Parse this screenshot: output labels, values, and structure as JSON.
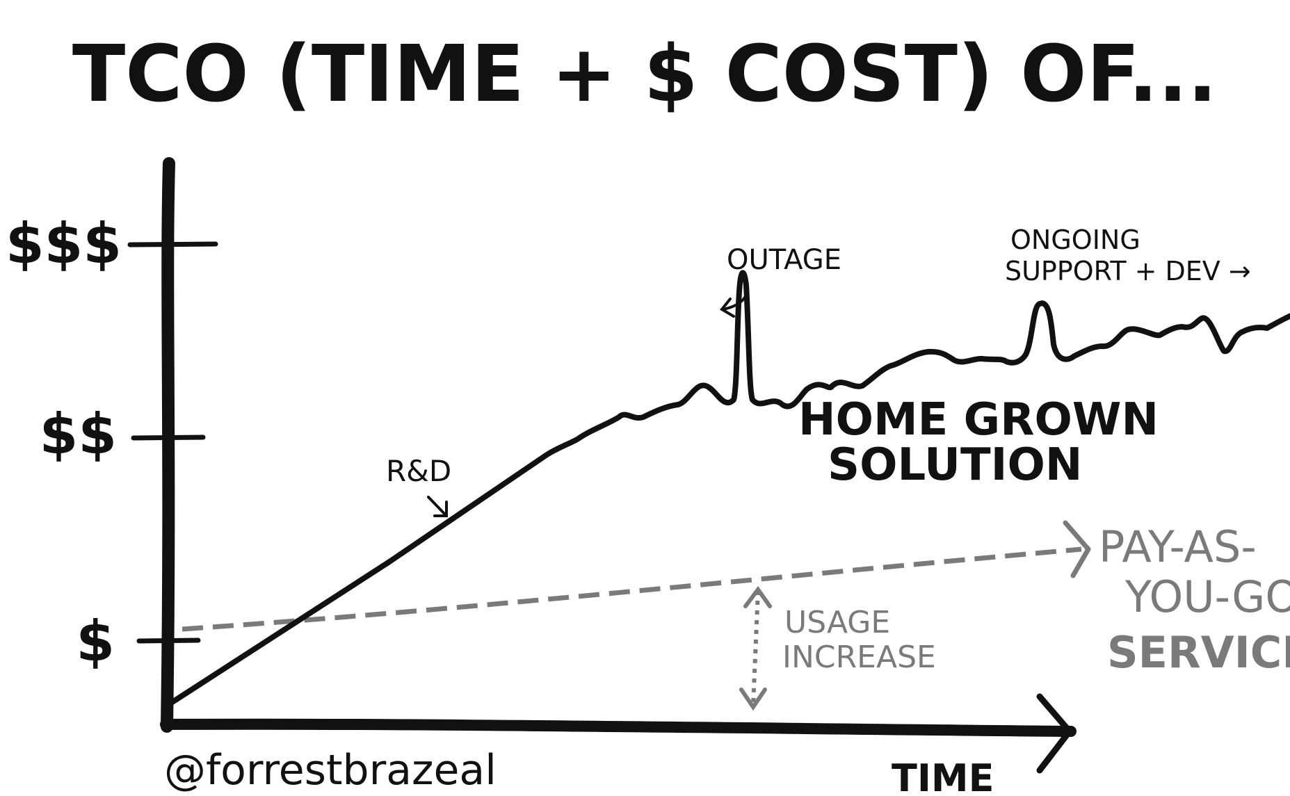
{
  "title": "TCO (TIME + $ COST) OF...",
  "y_ticks": [
    "$",
    "$$",
    "$$$"
  ],
  "x_axis_label": "TIME",
  "credit": "@forrestbrazeal",
  "homegrown": {
    "label_line1": "HOME GROWN",
    "label_line2": "SOLUTION",
    "rd_label": "R&D",
    "outage_label": "OUTAGE",
    "ongoing_line1": "ONGOING",
    "ongoing_line2": "SUPPORT + DEV →"
  },
  "payg": {
    "label_line1": "PAY-AS-",
    "label_line2": "YOU-GO",
    "label_line3": "SERVICE",
    "usage_line1": "USAGE",
    "usage_line2": "INCREASE"
  },
  "colors": {
    "ink": "#111111",
    "grey_line": "#7a7a7a",
    "background": "#ffffff"
  }
}
